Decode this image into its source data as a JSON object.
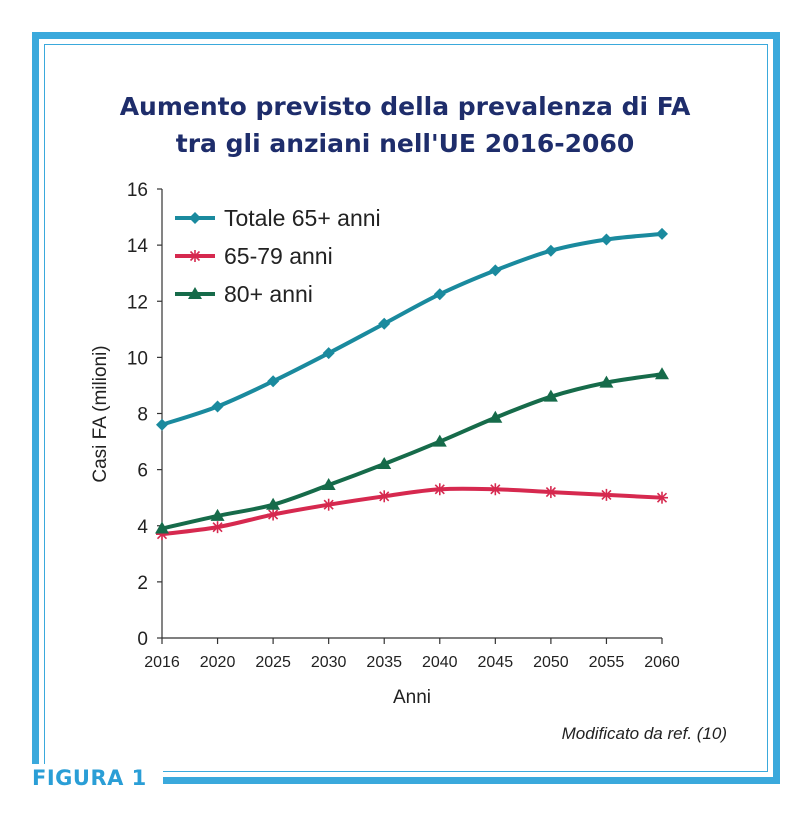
{
  "figure_label": "FIGURA 1",
  "source_note": "Modificato da ref. (10)",
  "colors": {
    "frame": "#3aa9dc",
    "title": "#1e2d6b",
    "caption": "#2a9ed6"
  },
  "chart_data": {
    "type": "line",
    "title": "Aumento previsto della prevalenza di FA",
    "subtitle": "tra gli anziani nell'UE 2016-2060",
    "xlabel": "Anni",
    "ylabel": "Casi FA (milioni)",
    "ylim": [
      0,
      16
    ],
    "yticks": [
      0,
      2,
      4,
      6,
      8,
      10,
      12,
      14,
      16
    ],
    "x_tick_labels": [
      "2016",
      "2020",
      "2025",
      "2030",
      "2035",
      "2040",
      "2045",
      "2050",
      "2055",
      "2060"
    ],
    "grid": false,
    "legend_position": "top-left",
    "series": [
      {
        "name": "Totale 65+ anni",
        "color": "#1a8a9e",
        "marker": "diamond",
        "values": [
          7.6,
          8.25,
          9.15,
          10.15,
          11.2,
          12.25,
          13.1,
          13.8,
          14.2,
          14.4
        ]
      },
      {
        "name": "65-79 anni",
        "color": "#d6294f",
        "marker": "asterisk",
        "values": [
          3.7,
          3.95,
          4.4,
          4.75,
          5.05,
          5.3,
          5.3,
          5.2,
          5.1,
          5.0
        ]
      },
      {
        "name": "80+ anni",
        "color": "#166b4a",
        "marker": "triangle",
        "values": [
          3.9,
          4.35,
          4.75,
          5.45,
          6.2,
          7.0,
          7.85,
          8.6,
          9.1,
          9.4
        ]
      }
    ]
  }
}
